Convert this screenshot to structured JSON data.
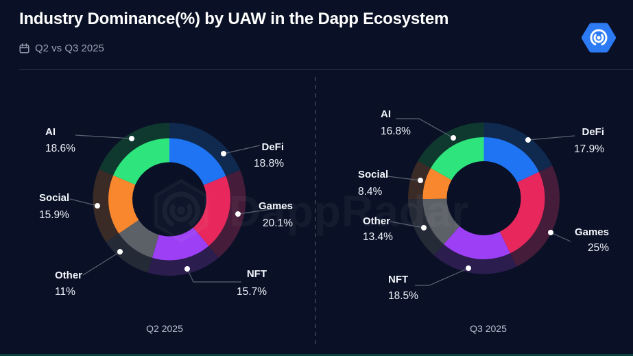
{
  "header": {
    "title": "Industry Dominance(%) by UAW in the Dapp Ecosystem",
    "subtitle": "Q2 vs Q3 2025",
    "subtitle_icon": "calendar-icon",
    "logo_icon": "dappradar-logo"
  },
  "watermark": {
    "text": "DappRadar"
  },
  "colors": {
    "background": "#0a1126",
    "logo_blue": "#2c7bf5",
    "leader_line": "#5a6372",
    "leader_dot": "#ffffff",
    "caption_text": "#bcc3d6",
    "bottom_accent": "#0d403c"
  },
  "chart_data": [
    {
      "type": "pie",
      "donut": true,
      "title": "Q2 2025",
      "unit": "%",
      "start_angle_deg_from_top_clockwise": 0,
      "slices": [
        {
          "label": "DeFi",
          "value": 18.8,
          "display": "18.8%",
          "color": "#1e74f3",
          "muted": "#10294f"
        },
        {
          "label": "Games",
          "value": 20.1,
          "display": "20.1%",
          "color": "#e8285c",
          "muted": "#451c39"
        },
        {
          "label": "NFT",
          "value": 15.7,
          "display": "15.7%",
          "color": "#9c3ff5",
          "muted": "#2b1d4e"
        },
        {
          "label": "Other",
          "value": 11,
          "display": "11%",
          "color": "#5c6067",
          "muted": "#252a37"
        },
        {
          "label": "Social",
          "value": 15.9,
          "display": "15.9%",
          "color": "#f8872e",
          "muted": "#3a2b27"
        },
        {
          "label": "AI",
          "value": 18.6,
          "display": "18.6%",
          "color": "#2ee57d",
          "muted": "#0f392f"
        }
      ]
    },
    {
      "type": "pie",
      "donut": true,
      "title": "Q3 2025",
      "unit": "%",
      "start_angle_deg_from_top_clockwise": 0,
      "slices": [
        {
          "label": "DeFi",
          "value": 17.9,
          "display": "17.9%",
          "color": "#1e74f3",
          "muted": "#10294f"
        },
        {
          "label": "Games",
          "value": 25,
          "display": "25%",
          "color": "#e8285c",
          "muted": "#451c39"
        },
        {
          "label": "NFT",
          "value": 18.5,
          "display": "18.5%",
          "color": "#9c3ff5",
          "muted": "#2b1d4e"
        },
        {
          "label": "Other",
          "value": 13.4,
          "display": "13.4%",
          "color": "#5c6067",
          "muted": "#252a37"
        },
        {
          "label": "Social",
          "value": 8.4,
          "display": "8.4%",
          "color": "#f8872e",
          "muted": "#3a2b27"
        },
        {
          "label": "AI",
          "value": 16.8,
          "display": "16.8%",
          "color": "#2ee57d",
          "muted": "#0f392f"
        }
      ]
    }
  ]
}
